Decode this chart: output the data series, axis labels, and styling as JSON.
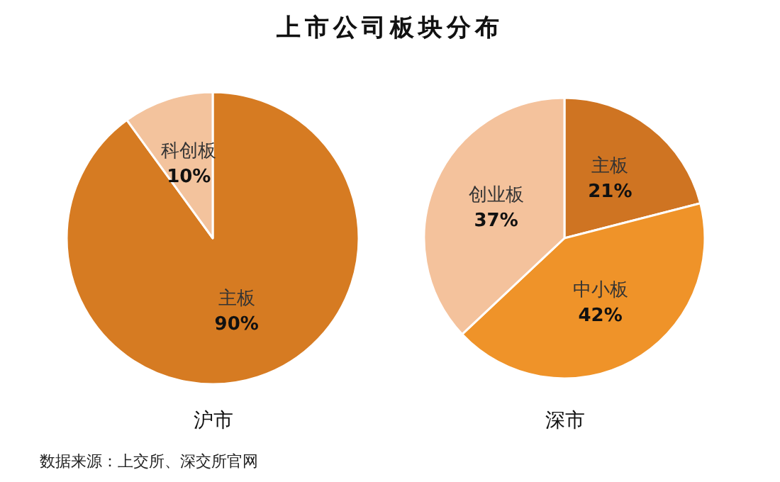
{
  "chart_data": [
    {
      "type": "pie",
      "title": "上市公司板块分布",
      "xlabel": "沪市",
      "categories": [
        "主板",
        "科创板"
      ],
      "values": [
        90,
        10
      ],
      "value_labels": [
        "90%",
        "10%"
      ],
      "colors": [
        "#d67b22",
        "#f3c39d"
      ],
      "annotations": [
        "数据来源：上交所、深交所官网"
      ]
    },
    {
      "type": "pie",
      "xlabel": "深市",
      "categories": [
        "主板",
        "中小板",
        "创业板"
      ],
      "values": [
        21,
        42,
        37
      ],
      "value_labels": [
        "21%",
        "42%",
        "37%"
      ],
      "colors": [
        "#cf7422",
        "#ef9329",
        "#f4c29c"
      ]
    }
  ]
}
